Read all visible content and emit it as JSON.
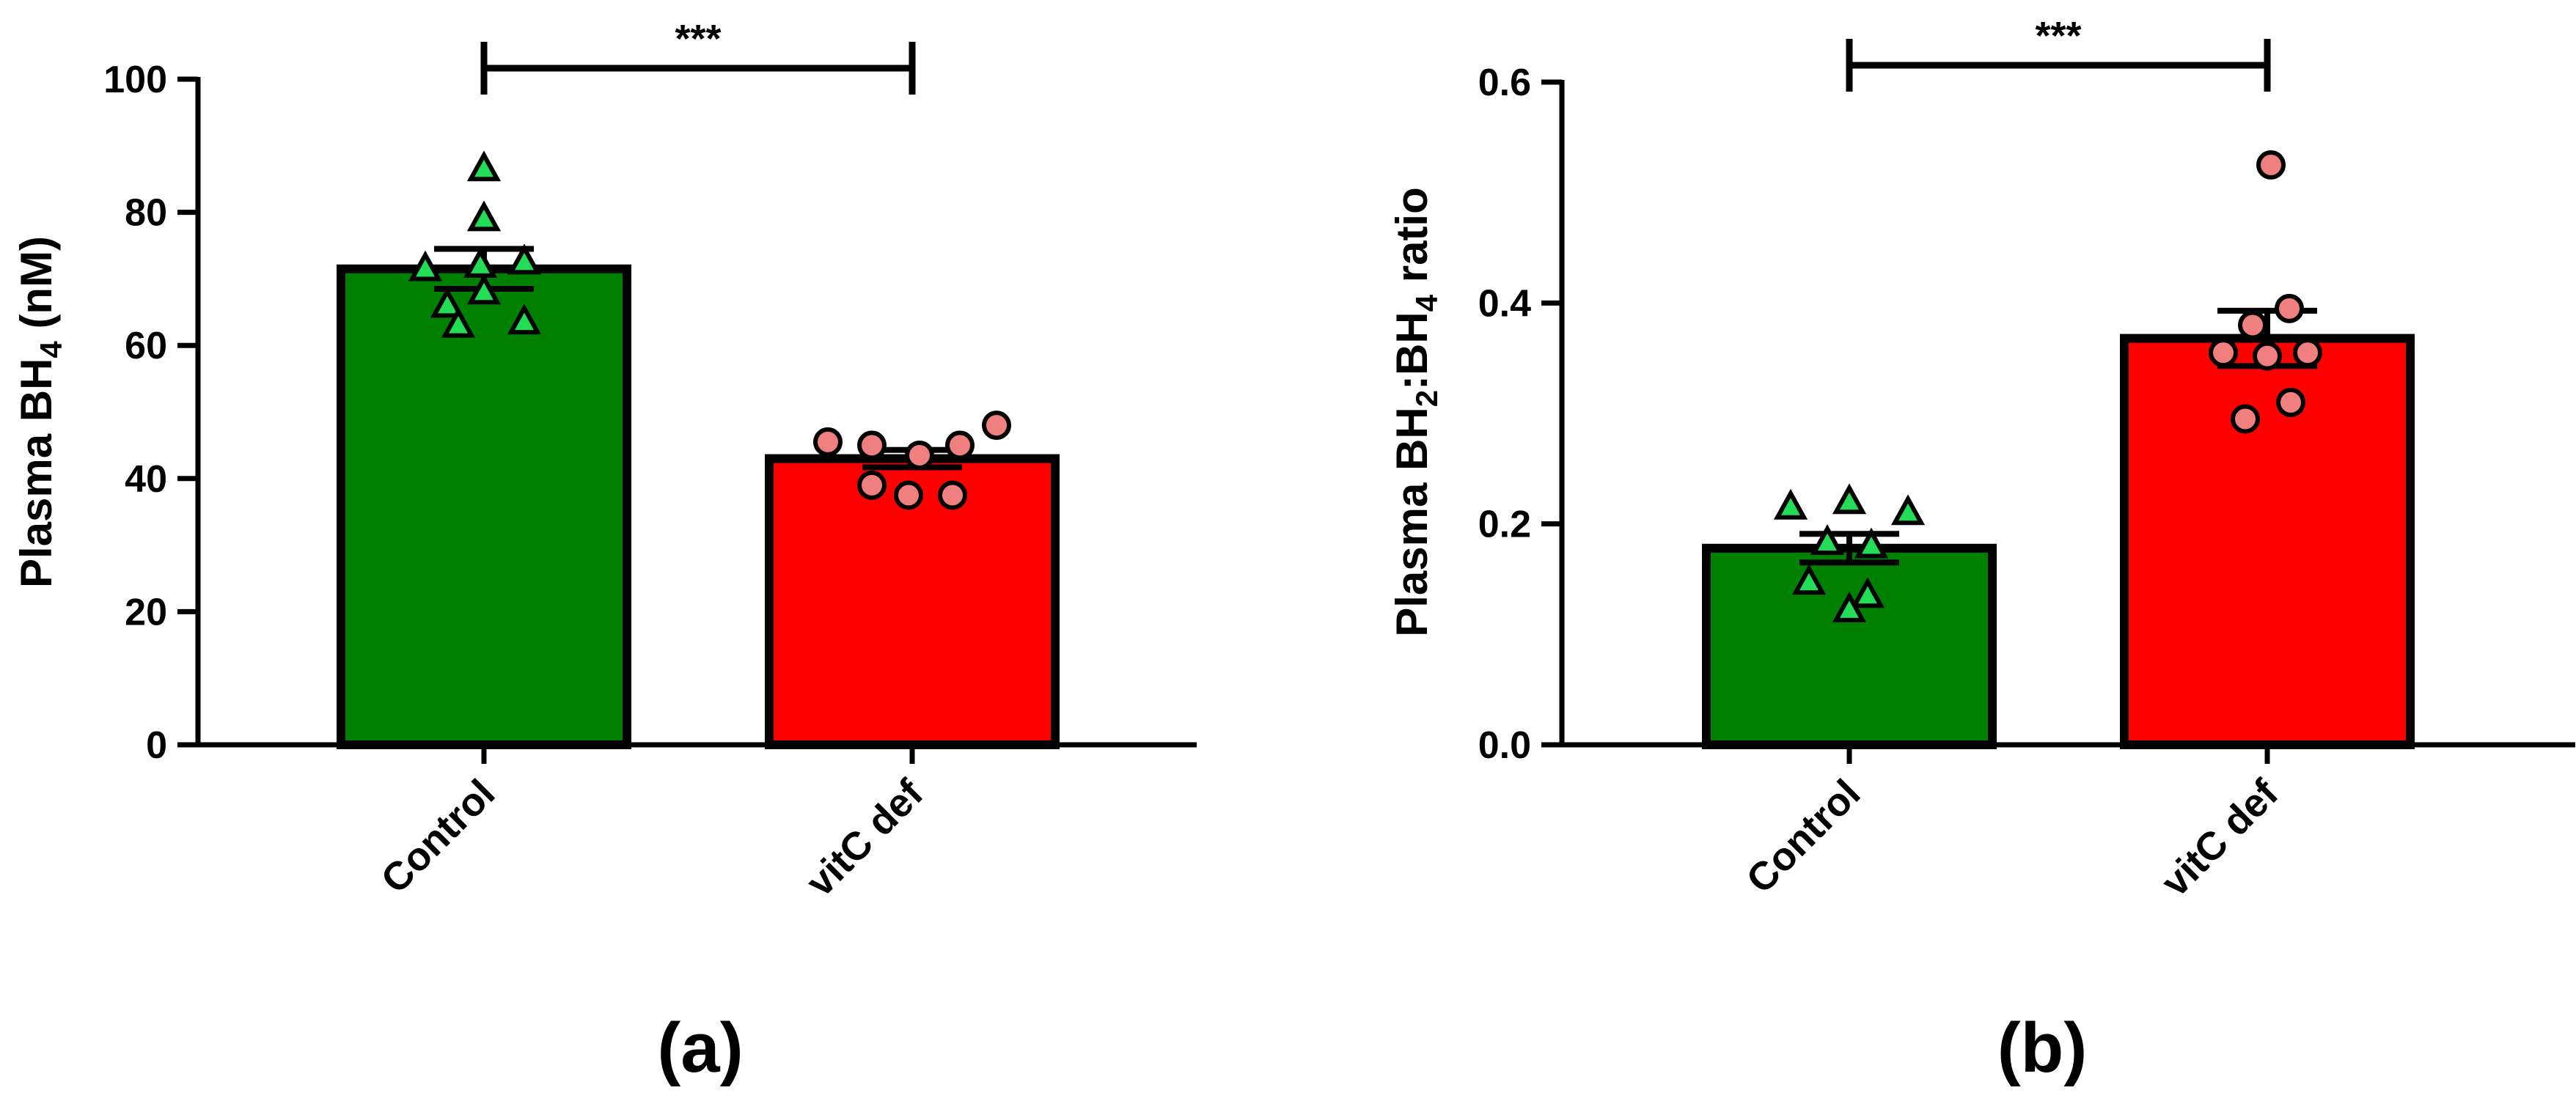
{
  "chart_data": [
    {
      "type": "bar",
      "panel_label": "(a)",
      "title": "",
      "xlabel": "",
      "ylabel_parts": [
        {
          "text": "Plasma BH",
          "sub": false
        },
        {
          "text": "4",
          "sub": true
        },
        {
          "text": " (nM)",
          "sub": false
        }
      ],
      "ylim": [
        0,
        100
      ],
      "yticks": [
        "0",
        "20",
        "40",
        "60",
        "80",
        "100"
      ],
      "ytick_values": [
        0,
        20,
        40,
        60,
        80,
        100
      ],
      "categories": [
        "Control",
        "vitC def"
      ],
      "series": [
        {
          "name": "Control",
          "mean": 71.5,
          "sem": 3.0,
          "bar_color": "#008000",
          "marker": "triangle",
          "marker_color": "#22dd55",
          "points": [
            86.5,
            79.0,
            71.5,
            72.0,
            72.5,
            66.0,
            68.0,
            63.0,
            63.5
          ]
        },
        {
          "name": "vitC def",
          "mean": 43.0,
          "sem": 1.3,
          "bar_color": "#ff0000",
          "marker": "circle",
          "marker_color": "#f08080",
          "points": [
            45.5,
            45.0,
            43.5,
            45.0,
            48.0,
            39.0,
            37.5,
            37.5
          ]
        }
      ],
      "significance": {
        "label": "***",
        "from": "Control",
        "to": "vitC def"
      }
    },
    {
      "type": "bar",
      "panel_label": "(b)",
      "title": "",
      "xlabel": "",
      "ylabel_parts": [
        {
          "text": "Plasma BH",
          "sub": false
        },
        {
          "text": "2",
          "sub": true
        },
        {
          "text": ":BH",
          "sub": false
        },
        {
          "text": "4",
          "sub": true
        },
        {
          "text": " ratio",
          "sub": false
        }
      ],
      "ylim": [
        0,
        0.6
      ],
      "yticks": [
        "0.0",
        "0.2",
        "0.4",
        "0.6"
      ],
      "ytick_values": [
        0,
        0.2,
        0.4,
        0.6
      ],
      "categories": [
        "Control",
        "vitC def"
      ],
      "series": [
        {
          "name": "Control",
          "mean": 0.178,
          "sem": 0.013,
          "bar_color": "#008000",
          "marker": "triangle",
          "marker_color": "#22dd55",
          "points": [
            0.215,
            0.22,
            0.21,
            0.18,
            0.183,
            0.147,
            0.135,
            0.122
          ]
        },
        {
          "name": "vitC def",
          "mean": 0.368,
          "sem": 0.025,
          "bar_color": "#ff0000",
          "marker": "circle",
          "marker_color": "#f08080",
          "points": [
            0.525,
            0.395,
            0.38,
            0.355,
            0.355,
            0.352,
            0.31,
            0.295
          ]
        }
      ],
      "significance": {
        "label": "***",
        "from": "Control",
        "to": "vitC def"
      }
    }
  ]
}
